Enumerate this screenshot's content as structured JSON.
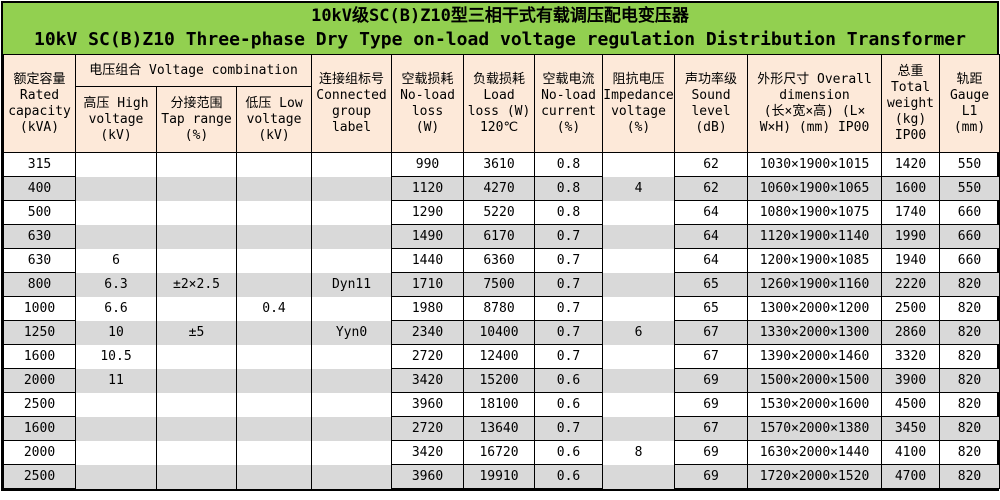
{
  "title": {
    "line1": "10kV级SC(B)Z10型三相干式有载调压配电变压器",
    "line2": "10kV SC(B)Z10 Three-phase Dry Type on-load voltage regulation Distribution Transformer"
  },
  "colors": {
    "title_bg": "#92D050",
    "header_bg": "#FDE9D9",
    "stripe_bg": "#D9D9D9",
    "border": "#000000",
    "text": "#000000"
  },
  "table": {
    "headers": {
      "rated": "额定容量\nRated\ncapacity\n(kVA)",
      "voltage_combination": "电压组合 Voltage combination",
      "high_voltage": "高压 High\nvoltage\n(kV)",
      "tap_range": "分接范围\nTap range\n(%)",
      "low_voltage": "低压 Low\nvoltage\n(kV)",
      "connected_group": "连接组标号\nConnected\ngroup\nlabel",
      "no_load_loss": "空载损耗\nNo-load\nloss\n(W)",
      "load_loss": "负载损耗\nLoad\nloss (W)\n120℃",
      "no_load_current": "空载电流\nNo-load\ncurrent\n(%)",
      "impedance_voltage": "阻抗电压\nImpedance\nvoltage\n(%)",
      "sound_level": "声功率级\nSound\nlevel\n(dB)",
      "overall_dimension": "外形尺寸 Overall\ndimension\n(长×宽×高) (L×\nW×H) (mm) IP00",
      "total_weight": "总重\nTotal\nweight\n(kg)\nIP00",
      "gauge": "轨距\nGauge\nL1\n(mm)"
    },
    "rows": [
      [
        "315",
        "",
        "",
        "",
        "",
        "990",
        "3610",
        "0.8",
        "",
        "62",
        "1030×1900×1015",
        "1420",
        "550"
      ],
      [
        "400",
        "",
        "",
        "",
        "",
        "1120",
        "4270",
        "0.8",
        "4",
        "62",
        "1060×1900×1065",
        "1600",
        "550"
      ],
      [
        "500",
        "",
        "",
        "",
        "",
        "1290",
        "5220",
        "0.8",
        "",
        "64",
        "1080×1900×1075",
        "1740",
        "660"
      ],
      [
        "630",
        "",
        "",
        "",
        "",
        "1490",
        "6170",
        "0.7",
        "",
        "64",
        "1120×1900×1140",
        "1990",
        "660"
      ],
      [
        "630",
        "6",
        "",
        "",
        "",
        "1440",
        "6360",
        "0.7",
        "",
        "64",
        "1200×1900×1085",
        "1940",
        "660"
      ],
      [
        "800",
        "6.3",
        "±2×2.5",
        "",
        "Dyn11",
        "1710",
        "7500",
        "0.7",
        "",
        "65",
        "1260×1900×1160",
        "2220",
        "820"
      ],
      [
        "1000",
        "6.6",
        "",
        "0.4",
        "",
        "1980",
        "8780",
        "0.7",
        "",
        "65",
        "1300×2000×1200",
        "2500",
        "820"
      ],
      [
        "1250",
        "10",
        "±5",
        "",
        "Yyn0",
        "2340",
        "10400",
        "0.7",
        "6",
        "67",
        "1330×2000×1300",
        "2860",
        "820"
      ],
      [
        "1600",
        "10.5",
        "",
        "",
        "",
        "2720",
        "12400",
        "0.7",
        "",
        "67",
        "1390×2000×1460",
        "3320",
        "820"
      ],
      [
        "2000",
        "11",
        "",
        "",
        "",
        "3420",
        "15200",
        "0.6",
        "",
        "69",
        "1500×2000×1500",
        "3900",
        "820"
      ],
      [
        "2500",
        "",
        "",
        "",
        "",
        "3960",
        "18100",
        "0.6",
        "",
        "69",
        "1530×2000×1600",
        "4500",
        "820"
      ],
      [
        "1600",
        "",
        "",
        "",
        "",
        "2720",
        "13640",
        "0.7",
        "",
        "67",
        "1570×2000×1380",
        "3450",
        "820"
      ],
      [
        "2000",
        "",
        "",
        "",
        "",
        "3420",
        "16720",
        "0.6",
        "8",
        "69",
        "1630×2000×1440",
        "4100",
        "820"
      ],
      [
        "2500",
        "",
        "",
        "",
        "",
        "3960",
        "19910",
        "0.6",
        "",
        "69",
        "1720×2000×1520",
        "4700",
        "820"
      ]
    ]
  }
}
